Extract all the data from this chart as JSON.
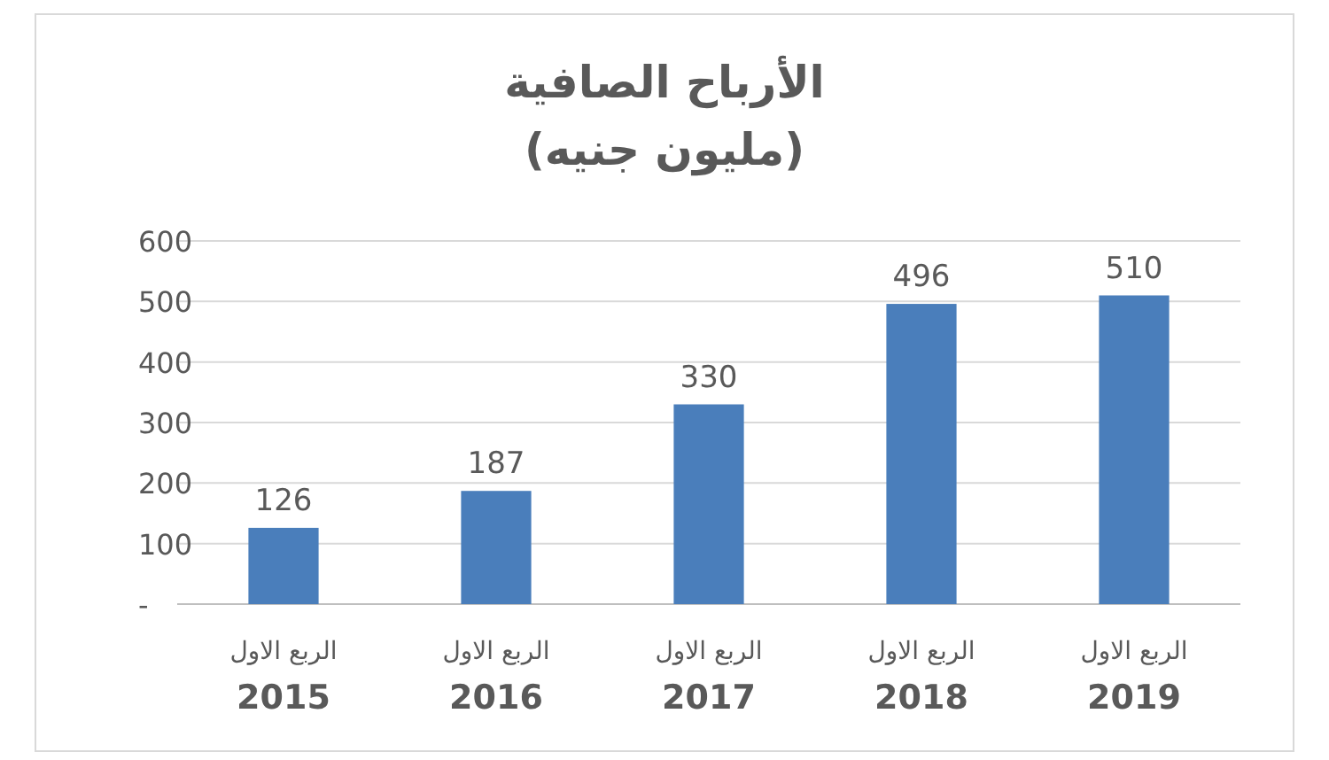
{
  "chart_data": {
    "type": "bar",
    "title": "الأرباح الصافية\n(مليون جنيه)",
    "categories": [
      "الربع الاول\n2015",
      "الربع الاول\n2016",
      "الربع الاول\n2017",
      "الربع الاول\n2018",
      "الربع الاول\n2019"
    ],
    "values": [
      126,
      187,
      330,
      496,
      510
    ],
    "color": "#4a7ebb",
    "ylim": [
      0,
      600
    ],
    "yticks": [
      {
        "value": 0,
        "label": "-"
      },
      100,
      200,
      300,
      400,
      500,
      600
    ],
    "grid": "y",
    "data_labels": true
  }
}
